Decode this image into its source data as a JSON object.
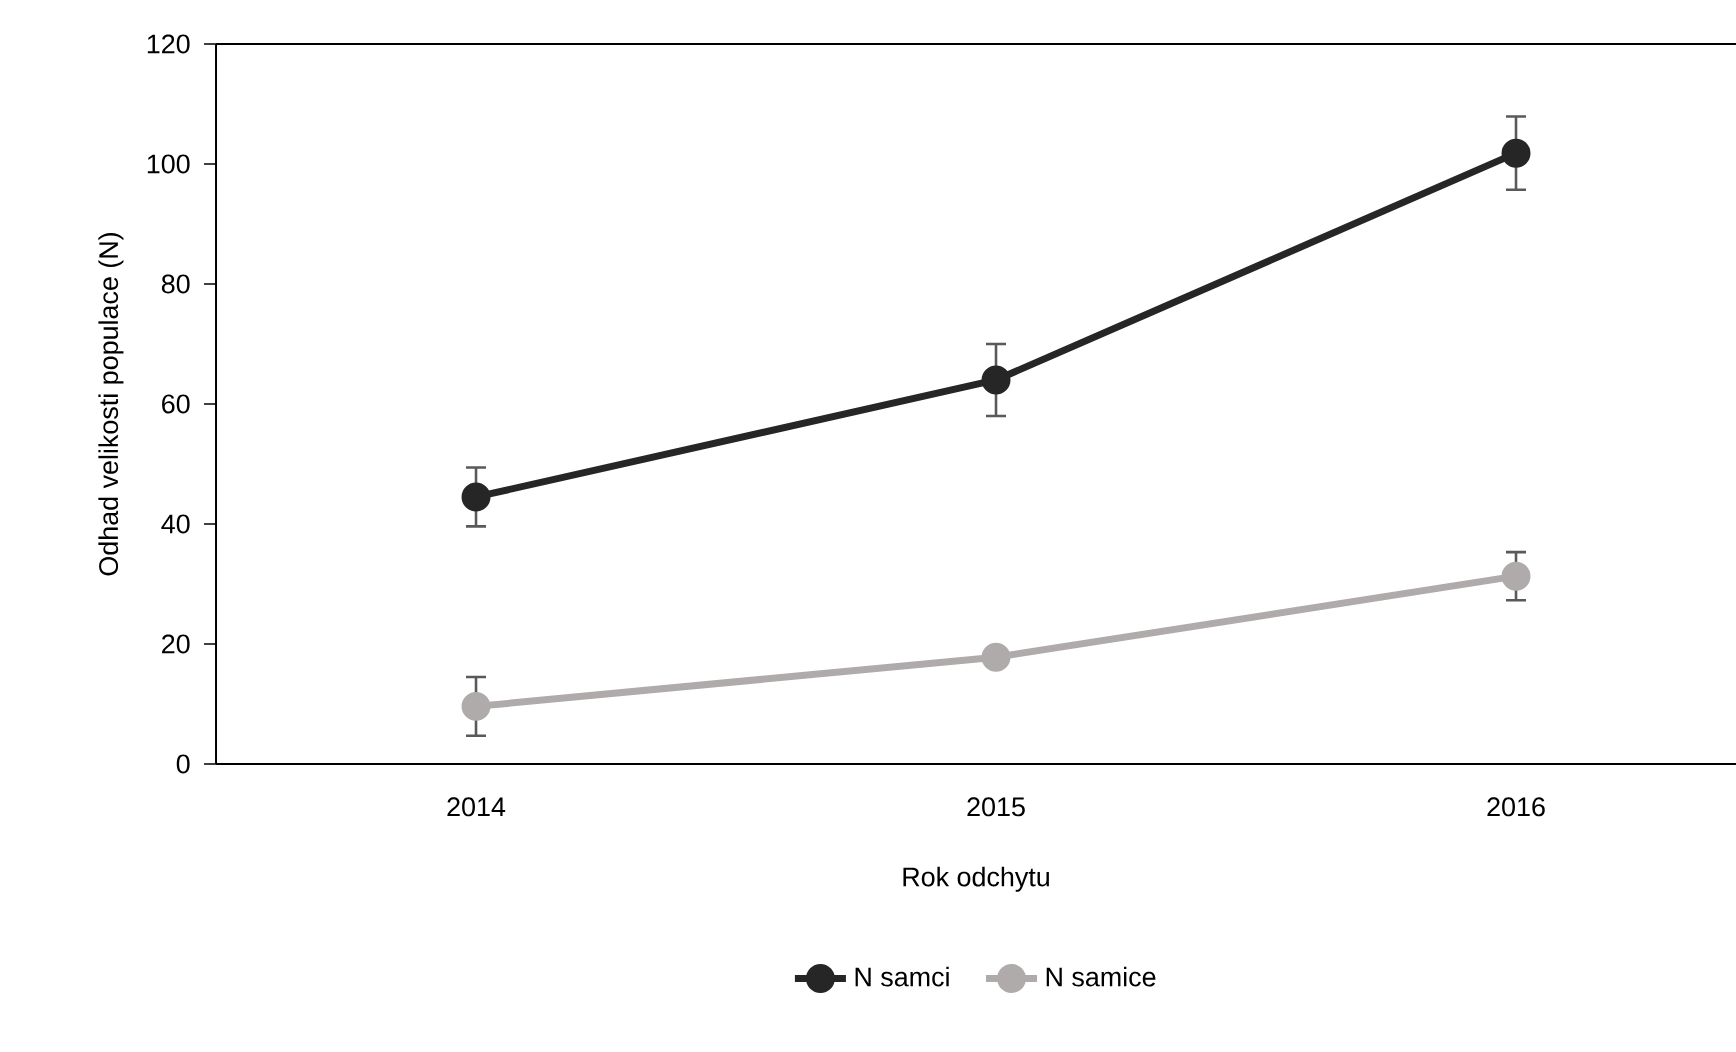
{
  "chart_data": {
    "type": "line",
    "xlabel": "Rok odchytu",
    "ylabel": "Odhad velikosti populace (N)",
    "categories": [
      "2014",
      "2015",
      "2016"
    ],
    "ylim": [
      0,
      120
    ],
    "yticks": [
      0,
      20,
      40,
      60,
      80,
      100,
      120
    ],
    "marker": "circle",
    "legend": "bottom",
    "grid": false,
    "series": [
      {
        "name": "N samci",
        "color": "#262626",
        "values": [
          44.5,
          64,
          101.8
        ],
        "errors": [
          4.9,
          6,
          6.1
        ]
      },
      {
        "name": "N samice",
        "color": "#afabab",
        "values": [
          9.6,
          17.8,
          31.3
        ],
        "errors": [
          4.9,
          null,
          4
        ]
      }
    ]
  }
}
